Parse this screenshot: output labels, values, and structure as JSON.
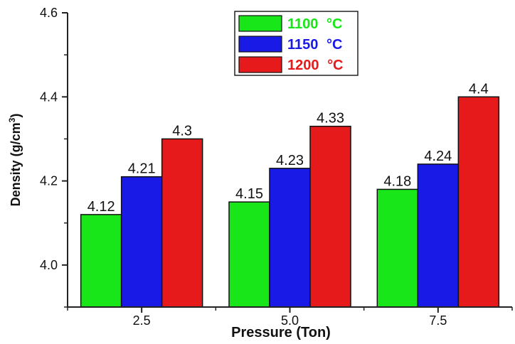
{
  "chart_data": {
    "type": "bar",
    "xlabel": "Pressure (Ton)",
    "ylabel": {
      "base": "Density (g/cm",
      "sup": "3",
      "end": ")"
    },
    "categories": [
      "2.5",
      "5.0",
      "7.5"
    ],
    "ylim": [
      3.9,
      4.6
    ],
    "yticks": [
      "4.0",
      "4.2",
      "4.4",
      "4.6"
    ],
    "series": [
      {
        "name": "1100 °C",
        "name_main": "1100",
        "name_unit": "°C",
        "color": "#19e619",
        "values": [
          4.12,
          4.15,
          4.18
        ],
        "labels": [
          "4.12",
          "4.15",
          "4.18"
        ]
      },
      {
        "name": "1150 °C",
        "name_main": "1150",
        "name_unit": "°C",
        "color": "#1a1ae6",
        "values": [
          4.21,
          4.23,
          4.24
        ],
        "labels": [
          "4.21",
          "4.23",
          "4.24"
        ]
      },
      {
        "name": "1200 °C",
        "name_main": "1200",
        "name_unit": "°C",
        "color": "#e61a1a",
        "values": [
          4.3,
          4.33,
          4.4
        ],
        "labels": [
          "4.3",
          "4.33",
          "4.4"
        ]
      }
    ],
    "legend_position": "top-center",
    "grid": false
  }
}
